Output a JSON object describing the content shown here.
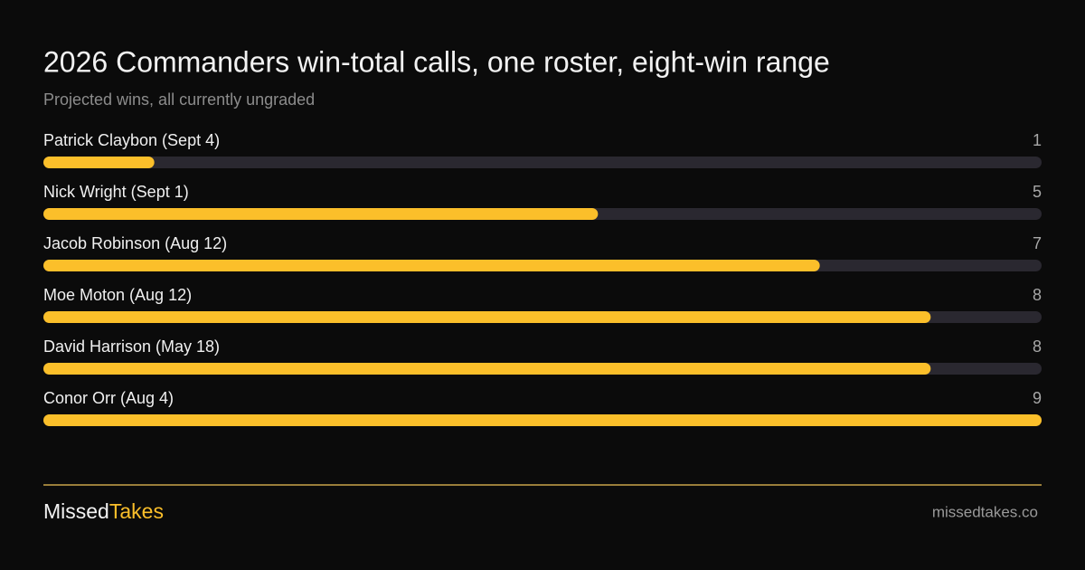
{
  "chart_data": {
    "type": "bar",
    "orientation": "horizontal",
    "title": "2026 Commanders win-total calls, one roster, eight-win range",
    "subtitle": "Projected wins, all currently ungraded",
    "categories": [
      "Patrick Claybon (Sept 4)",
      "Nick Wright (Sept 1)",
      "Jacob Robinson (Aug 12)",
      "Moe Moton (Aug 12)",
      "David Harrison (May 18)",
      "Conor Orr (Aug 4)"
    ],
    "values": [
      1,
      5,
      7,
      8,
      8,
      9
    ],
    "color": "#fbbf2a",
    "xlim": [
      0,
      9
    ]
  },
  "footer": {
    "brand_first": "Missed",
    "brand_second": "Takes",
    "url": "missedtakes.co"
  }
}
